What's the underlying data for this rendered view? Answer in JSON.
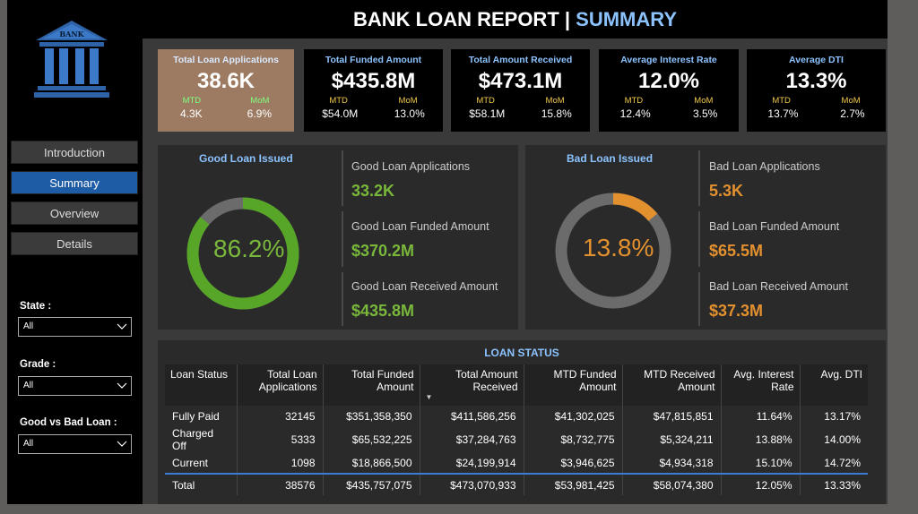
{
  "title": {
    "main": "BANK LOAN REPORT | ",
    "accent": "SUMMARY"
  },
  "logo": {
    "text": "BANK"
  },
  "nav": [
    {
      "label": "Introduction",
      "active": false
    },
    {
      "label": "Summary",
      "active": true
    },
    {
      "label": "Overview",
      "active": false
    },
    {
      "label": "Details",
      "active": false
    }
  ],
  "filters": [
    {
      "label": "State :",
      "value": "All"
    },
    {
      "label": "Grade :",
      "value": "All"
    },
    {
      "label": "Good vs Bad Loan :",
      "value": "All"
    }
  ],
  "kpis": [
    {
      "title": "Total Loan Applications",
      "value": "38.6K",
      "mtd_label": "MTD",
      "mom_label": "MoM",
      "mtd": "4.3K",
      "mom": "6.9%"
    },
    {
      "title": "Total Funded Amount",
      "value": "$435.8M",
      "mtd_label": "MTD",
      "mom_label": "MoM",
      "mtd": "$54.0M",
      "mom": "13.0%"
    },
    {
      "title": "Total Amount Received",
      "value": "$473.1M",
      "mtd_label": "MTD",
      "mom_label": "MoM",
      "mtd": "$58.1M",
      "mom": "15.8%"
    },
    {
      "title": "Average Interest Rate",
      "value": "12.0%",
      "mtd_label": "MTD",
      "mom_label": "MoM",
      "mtd": "12.4%",
      "mom": "3.5%"
    },
    {
      "title": "Average DTI",
      "value": "13.3%",
      "mtd_label": "MTD",
      "mom_label": "MoM",
      "mtd": "13.7%",
      "mom": "2.7%"
    }
  ],
  "good_loan": {
    "title": "Good Loan Issued",
    "percent": 86.2,
    "percent_label": "86.2%",
    "color": "#58a628",
    "stats": [
      {
        "label": "Good Loan Applications",
        "value": "33.2K"
      },
      {
        "label": "Good Loan Funded Amount",
        "value": "$370.2M"
      },
      {
        "label": "Good Loan Received Amount",
        "value": "$435.8M"
      }
    ]
  },
  "bad_loan": {
    "title": "Bad Loan Issued",
    "percent": 13.8,
    "percent_label": "13.8%",
    "color": "#e3912f",
    "stats": [
      {
        "label": "Bad Loan Applications",
        "value": "5.3K"
      },
      {
        "label": "Bad Loan Funded Amount",
        "value": "$65.5M"
      },
      {
        "label": "Bad Loan Received Amount",
        "value": "$37.3M"
      }
    ]
  },
  "loan_status": {
    "title": "LOAN STATUS",
    "columns": [
      "Loan Status",
      "Total Loan Applications",
      "Total Funded Amount",
      "Total Amount Received",
      "MTD Funded Amount",
      "MTD Received Amount",
      "Avg. Interest Rate",
      "Avg. DTI"
    ],
    "rows": [
      [
        "Fully Paid",
        "32145",
        "$351,358,350",
        "$411,586,256",
        "$41,302,025",
        "$47,815,851",
        "11.64%",
        "13.17%"
      ],
      [
        "Charged Off",
        "5333",
        "$65,532,225",
        "$37,284,763",
        "$8,732,775",
        "$5,324,211",
        "13.88%",
        "14.00%"
      ],
      [
        "Current",
        "1098",
        "$18,866,500",
        "$24,199,914",
        "$3,946,625",
        "$4,934,318",
        "15.10%",
        "14.72%"
      ]
    ],
    "total": [
      "Total",
      "38576",
      "$435,757,075",
      "$473,070,933",
      "$53,981,425",
      "$58,074,380",
      "12.05%",
      "13.33%"
    ]
  }
}
